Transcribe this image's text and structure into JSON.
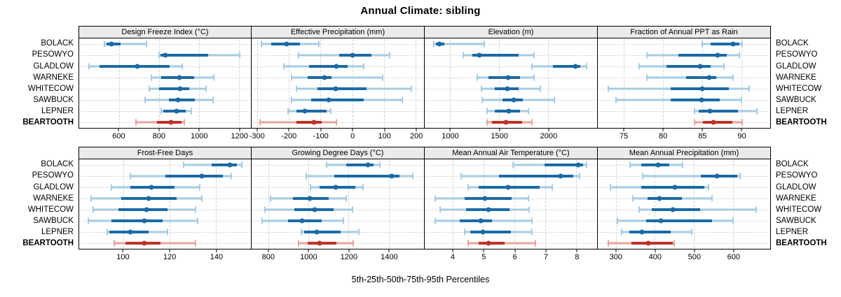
{
  "title": "Annual Climate: sibling",
  "footnote": "5th-25th-50th-75th-95th Percentiles",
  "colors": {
    "series": "#1b6aa5",
    "series_light": "#a6cbe3",
    "highlight": "#bf3228",
    "highlight_light": "#e7a59e",
    "strip_bg": "#ebebeb",
    "grid": "#cfcfcf"
  },
  "chart_data": {
    "type": "dot-interval",
    "description": "Trellis plot of annual climate percentile intervals (5th-25th-50th-75th-95th) per site; BEARTOOTH highlighted in red",
    "sites": [
      "BOLACK",
      "PESOWYO",
      "GLADLOW",
      "WARNEKE",
      "WHITECOW",
      "SAWBUCK",
      "LEPNER",
      "BEARTOOTH"
    ],
    "highlight_site": "BEARTOOTH",
    "percentiles": [
      "5th",
      "25th",
      "50th",
      "75th",
      "95th"
    ],
    "panel_rows": [
      [
        0,
        1,
        2,
        3
      ],
      [
        4,
        5,
        6,
        7
      ]
    ],
    "panels": [
      {
        "title": "Design Freeze Index (°C)",
        "xlim": [
          400,
          1260
        ],
        "ticks": [
          600,
          800,
          1000,
          1200
        ],
        "values": [
          [
            525,
            536,
            563,
            606,
            738
          ],
          [
            799,
            808,
            832,
            1045,
            1205
          ],
          [
            448,
            501,
            690,
            852,
            916
          ],
          [
            761,
            810,
            901,
            974,
            1074
          ],
          [
            750,
            799,
            904,
            951,
            1036
          ],
          [
            729,
            851,
            895,
            980,
            1071
          ],
          [
            810,
            822,
            889,
            935,
            960
          ],
          [
            685,
            790,
            860,
            912,
            925
          ]
        ]
      },
      {
        "title": "Effective Precipitation (mm)",
        "xlim": [
          -317,
          226
        ],
        "ticks": [
          -300,
          -200,
          -100,
          0,
          100,
          200
        ],
        "values": [
          [
            -285,
            -255,
            -206,
            -165,
            -105
          ],
          [
            -170,
            -40,
            0,
            60,
            118
          ],
          [
            -215,
            -136,
            -51,
            -15,
            37
          ],
          [
            -191,
            -140,
            -88,
            -66,
            95
          ],
          [
            -176,
            -110,
            -53,
            44,
            187
          ],
          [
            -191,
            -129,
            -74,
            37,
            158
          ],
          [
            -202,
            -176,
            -149,
            -81,
            -68
          ],
          [
            -290,
            -175,
            -121,
            -96,
            -50
          ]
        ]
      },
      {
        "title": "Elevation (m)",
        "xlim": [
          740,
          2500
        ],
        "ticks": [
          1000,
          1500,
          2000
        ],
        "values": [
          [
            835,
            855,
            893,
            940,
            1350
          ],
          [
            1130,
            1225,
            1298,
            1700,
            1857
          ],
          [
            1835,
            2050,
            2275,
            2330,
            2395
          ],
          [
            1274,
            1393,
            1590,
            1714,
            1857
          ],
          [
            1321,
            1452,
            1583,
            1702,
            1924
          ],
          [
            1329,
            1536,
            1650,
            1743,
            2060
          ],
          [
            1376,
            1452,
            1595,
            1714,
            1798
          ],
          [
            1376,
            1429,
            1567,
            1733,
            1838
          ]
        ]
      },
      {
        "title": "Fraction of Annual PPT as Rain",
        "xlim": [
          71.7,
          93.7
        ],
        "ticks": [
          75,
          80,
          85,
          90
        ],
        "values": [
          [
            85,
            86.1,
            89,
            89.8,
            90.1
          ],
          [
            78,
            82,
            87,
            88.2,
            89.8
          ],
          [
            77,
            80.5,
            84.8,
            86.1,
            87.8
          ],
          [
            78,
            83,
            85.9,
            86.8,
            89
          ],
          [
            73,
            81,
            85,
            88.4,
            91
          ],
          [
            74,
            81,
            84.9,
            87.3,
            90
          ],
          [
            84,
            84.6,
            86,
            89.6,
            92
          ],
          [
            84,
            85.1,
            86.5,
            88.9,
            90.1
          ]
        ]
      },
      {
        "title": "Frost-Free Days",
        "xlim": [
          81,
          155
        ],
        "ticks": [
          100,
          120,
          140
        ],
        "values": [
          [
            126,
            138,
            146,
            149,
            151
          ],
          [
            103,
            118,
            134,
            143,
            146.5
          ],
          [
            95,
            103,
            112,
            122,
            133
          ],
          [
            86,
            99,
            111,
            123,
            134
          ],
          [
            87,
            98,
            110,
            119,
            131
          ],
          [
            85,
            95,
            109,
            117,
            132
          ],
          [
            93,
            94,
            103,
            111,
            119
          ],
          [
            96,
            101,
            109,
            116,
            131
          ]
        ]
      },
      {
        "title": "Growing Degree Days (°C)",
        "xlim": [
          717,
          1576
        ],
        "ticks": [
          800,
          1000,
          1200,
          1400
        ],
        "values": [
          [
            1090,
            1190,
            1298,
            1325,
            1355
          ],
          [
            991,
            1130,
            1417,
            1455,
            1519
          ],
          [
            1010,
            1055,
            1136,
            1235,
            1272
          ],
          [
            812,
            922,
            1006,
            1101,
            1188
          ],
          [
            785,
            931,
            1030,
            1125,
            1221
          ],
          [
            769,
            899,
            970,
            1067,
            1174
          ],
          [
            965,
            980,
            1040,
            1159,
            1250
          ],
          [
            951,
            997,
            1055,
            1140,
            1225
          ]
        ]
      },
      {
        "title": "Mean Annual Air Temperature (°C)",
        "xlim": [
          3.1,
          8.67
        ],
        "ticks": [
          4,
          5,
          6,
          7,
          8
        ],
        "values": [
          [
            5.95,
            6.97,
            8.05,
            8.22,
            8.33
          ],
          [
            4.27,
            5.49,
            7.49,
            7.91,
            8.1
          ],
          [
            4.51,
            4.85,
            5.8,
            6.82,
            7.23
          ],
          [
            3.45,
            4.4,
            5.05,
            5.9,
            6.45
          ],
          [
            3.6,
            4.43,
            5.17,
            5.83,
            6.48
          ],
          [
            3.43,
            4.24,
            4.91,
            5.27,
            6.57
          ],
          [
            4.39,
            4.58,
            4.98,
            5.89,
            6.57
          ],
          [
            4.51,
            4.85,
            5.17,
            5.68,
            6.68
          ]
        ]
      },
      {
        "title": "Mean Annual Precipitation (mm)",
        "xlim": [
          254,
          695
        ],
        "ticks": [
          300,
          400,
          500,
          600
        ],
        "values": [
          [
            336,
            365,
            408,
            437,
            471
          ],
          [
            369,
            517,
            558,
            611,
            618
          ],
          [
            287,
            365,
            452,
            527,
            537
          ],
          [
            343,
            382,
            412,
            469,
            546
          ],
          [
            360,
            392,
            445,
            515,
            660
          ],
          [
            305,
            378,
            416,
            546,
            600
          ],
          [
            315,
            335,
            367,
            440,
            495
          ],
          [
            280,
            340,
            383,
            445,
            450
          ]
        ]
      }
    ]
  }
}
